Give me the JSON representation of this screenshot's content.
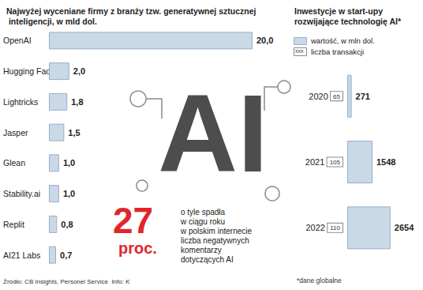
{
  "chart_data": [
    {
      "type": "bar",
      "orientation": "horizontal",
      "title": "Najwyżej wyceniane firmy z branży tzw. generatywnej sztucznej inteligencji, w mld dol.",
      "categories": [
        "OpenAI",
        "Hugging Face",
        "Lightricks",
        "Jasper",
        "Glean",
        "Stability.ai",
        "Replit",
        "AI21 Labs"
      ],
      "values": [
        20.0,
        2.0,
        1.8,
        1.5,
        1.0,
        1.0,
        0.8,
        0.7
      ],
      "value_labels": [
        "20,0",
        "2,0",
        "1,8",
        "1,5",
        "1,0",
        "1,0",
        "0,8",
        "0,7"
      ],
      "color": "#c9d9e8",
      "xlim": [
        0,
        20
      ],
      "data_labels": true,
      "tick_labels": "y",
      "grid": false
    },
    {
      "type": "bar",
      "orientation": "horizontal",
      "title": "Inwestycje w start-upy rozwijające technologię AI*",
      "categories": [
        "2020",
        "2021",
        "2022"
      ],
      "series": [
        {
          "name": "wartość, w mln dol.",
          "values": [
            271,
            1548,
            2654
          ],
          "color": "#c9d9e8"
        },
        {
          "name": "liczba transakcji",
          "type": "label",
          "sample": "xxx",
          "values": [
            65,
            105,
            110
          ],
          "color": "#ffffff"
        }
      ],
      "xlim": [
        0,
        3000
      ],
      "data_labels": true,
      "tick_labels": "y",
      "legend": "top-left",
      "grid": false,
      "footnote": "*dane globalne"
    }
  ],
  "annotation": {
    "value": 27,
    "unit": "proc.",
    "lines": [
      "o tyle spadła",
      "w ciągu roku",
      "w polskim internecie",
      "liczba negatywnych",
      "komentarzy",
      "dotyczących AI"
    ]
  },
  "illustration_text": "AI",
  "source": "Źródło: CB Insights, Personel Service  Info: K"
}
